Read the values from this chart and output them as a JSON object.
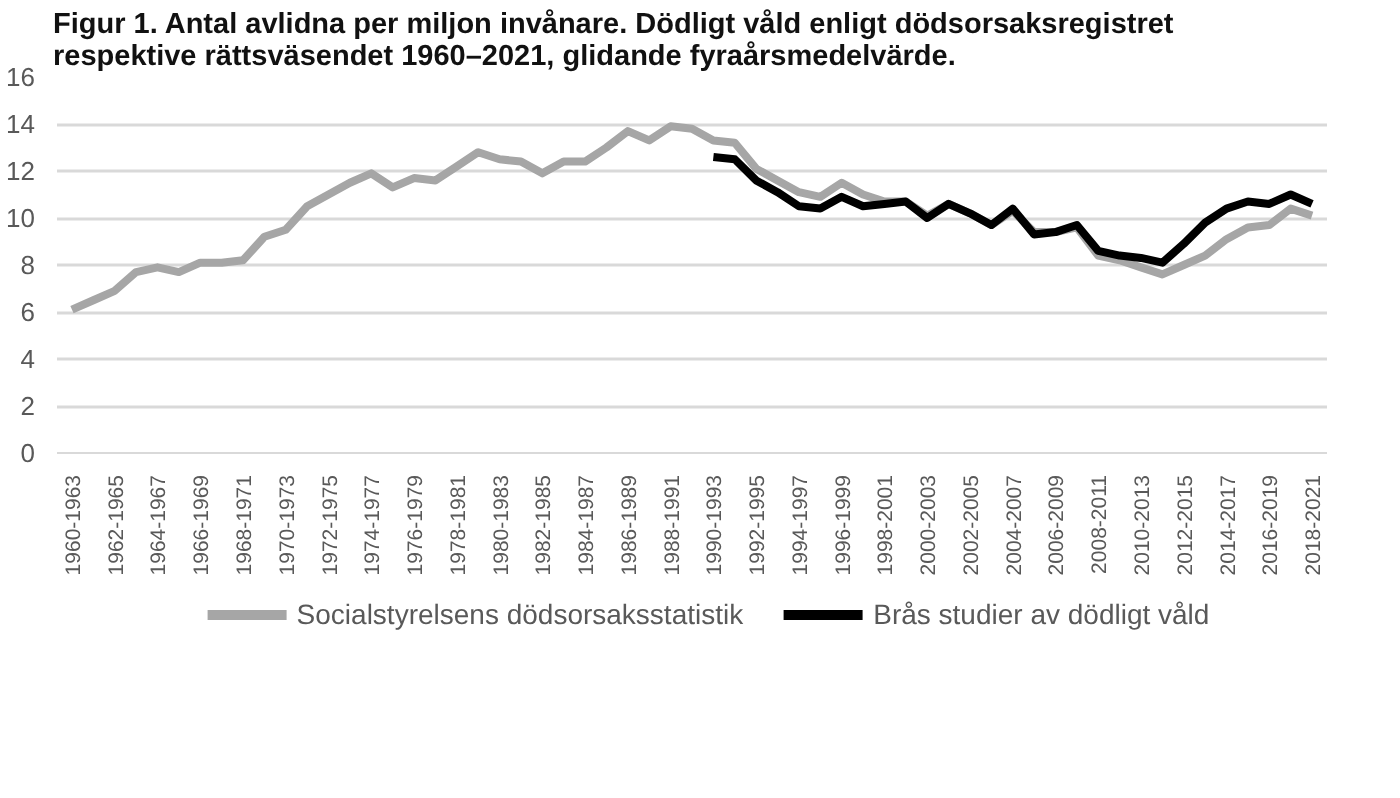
{
  "chart_data": {
    "type": "line",
    "title": "Figur 1. Antal avlidna per miljon invånare. Dödligt våld enligt dödsorsaksregistret respektive rättsväsendet 1960–2021, glidande fyraårsmedelvärde.",
    "categories": [
      "1960-1963",
      null,
      "1962-1965",
      null,
      "1964-1967",
      null,
      "1966-1969",
      null,
      "1968-1971",
      null,
      "1970-1973",
      null,
      "1972-1975",
      null,
      "1974-1977",
      null,
      "1976-1979",
      null,
      "1978-1981",
      null,
      "1980-1983",
      null,
      "1982-1985",
      null,
      "1984-1987",
      null,
      "1986-1989",
      null,
      "1988-1991",
      null,
      "1990-1993",
      null,
      "1992-1995",
      null,
      "1994-1997",
      null,
      "1996-1999",
      null,
      "1998-2001",
      null,
      "2000-2003",
      null,
      "2002-2005",
      null,
      "2004-2007",
      null,
      "2006-2009",
      null,
      "2008-2011",
      null,
      "2010-2013",
      null,
      "2012-2015",
      null,
      "2014-2017",
      null,
      "2016-2019",
      null,
      "2018-2021"
    ],
    "series": [
      {
        "name": "Socialstyrelsens dödsorsaksstatistik",
        "color": "#a6a6a6",
        "values": [
          6.1,
          6.5,
          6.9,
          7.7,
          7.9,
          7.7,
          8.1,
          8.1,
          8.2,
          9.2,
          9.5,
          10.5,
          11.0,
          11.5,
          11.9,
          11.3,
          11.7,
          11.6,
          12.2,
          12.8,
          12.5,
          12.4,
          11.9,
          12.4,
          12.4,
          13.0,
          13.7,
          13.3,
          13.9,
          13.8,
          13.3,
          13.2,
          12.1,
          11.6,
          11.1,
          10.9,
          11.5,
          11.0,
          10.7,
          10.7,
          10.1,
          10.6,
          10.2,
          9.7,
          10.3,
          9.4,
          9.4,
          9.6,
          8.4,
          8.2,
          7.9,
          7.6,
          8.0,
          8.4,
          9.1,
          9.6,
          9.7,
          10.4,
          10.1
        ]
      },
      {
        "name": "Brås studier av dödligt våld",
        "color": "#000000",
        "values": [
          null,
          null,
          null,
          null,
          null,
          null,
          null,
          null,
          null,
          null,
          null,
          null,
          null,
          null,
          null,
          null,
          null,
          null,
          null,
          null,
          null,
          null,
          null,
          null,
          null,
          null,
          null,
          null,
          null,
          null,
          12.6,
          12.5,
          11.6,
          11.1,
          10.5,
          10.4,
          10.9,
          10.5,
          10.6,
          10.7,
          10.0,
          10.6,
          10.2,
          9.7,
          10.4,
          9.3,
          9.4,
          9.7,
          8.6,
          8.4,
          8.3,
          8.1,
          8.9,
          9.8,
          10.4,
          10.7,
          10.6,
          11.0,
          10.6
        ]
      }
    ],
    "ylim": [
      0,
      16
    ],
    "yticks": [
      0,
      2,
      4,
      6,
      8,
      10,
      12,
      14,
      16
    ],
    "grid": "y",
    "legend": "bottom"
  }
}
